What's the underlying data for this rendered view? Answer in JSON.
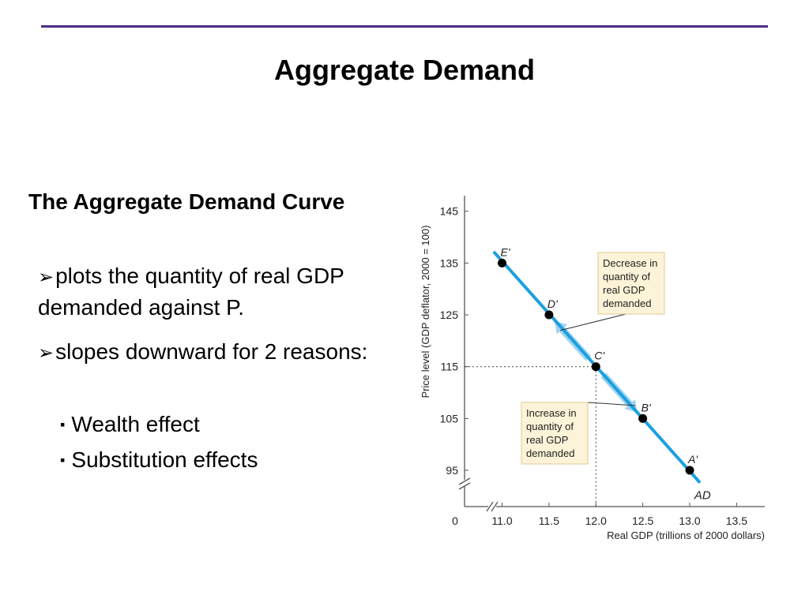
{
  "colors": {
    "rule": "#4b2e83",
    "curve": "#1aa0e0",
    "arrow": "#9fd3f0",
    "label_box": "#fdf3d8",
    "label_border": "#e0c892",
    "text": "#000000"
  },
  "slide": {
    "title": "Aggregate Demand",
    "heading": "The Aggregate Demand Curve",
    "bullets": [
      {
        "text": "plots the quantity of real GDP demanded against  P."
      },
      {
        "text": "slopes downward for 2 reasons:"
      }
    ],
    "sub_bullets": [
      {
        "text": "Wealth effect"
      },
      {
        "text": "Substitution effects"
      }
    ],
    "bullet_marker": "➢",
    "sub_bullet_marker": "▪"
  },
  "chart_data": {
    "type": "line",
    "xlabel": "Real GDP (trillions of 2000 dollars)",
    "ylabel": "Price level (GDP deflator, 2000 = 100)",
    "origin_label": "0",
    "x_ticks": [
      11.0,
      11.5,
      12.0,
      12.5,
      13.0,
      13.5
    ],
    "x_tick_labels": [
      "11.0",
      "11.5",
      "12.0",
      "12.5",
      "13.0",
      "13.5"
    ],
    "y_ticks": [
      95,
      105,
      115,
      125,
      135,
      145
    ],
    "y_tick_labels": [
      "95",
      "105",
      "115",
      "125",
      "135",
      "145"
    ],
    "xlim": [
      10.6,
      13.8
    ],
    "ylim": [
      88,
      148
    ],
    "axis_breaks": true,
    "curve_label": "AD",
    "curve_endpoints": [
      {
        "x": 10.92,
        "y": 137
      },
      {
        "x": 13.1,
        "y": 92.8
      }
    ],
    "points": [
      {
        "label": "E'",
        "x": 11.0,
        "y": 135
      },
      {
        "label": "D'",
        "x": 11.5,
        "y": 125
      },
      {
        "label": "C'",
        "x": 12.0,
        "y": 115
      },
      {
        "label": "B'",
        "x": 12.5,
        "y": 105
      },
      {
        "label": "A'",
        "x": 13.0,
        "y": 95
      }
    ],
    "reference": {
      "x": 12.0,
      "y": 115
    },
    "annotations": [
      {
        "lines": [
          "Decrease in",
          "quantity of",
          "real GDP",
          "demanded"
        ],
        "anchor": {
          "x": 11.62,
          "y": 122
        },
        "direction": "up"
      },
      {
        "lines": [
          "Increase in",
          "quantity of",
          "real GDP",
          "demanded"
        ],
        "anchor": {
          "x": 12.42,
          "y": 107.5
        },
        "direction": "down"
      }
    ]
  }
}
